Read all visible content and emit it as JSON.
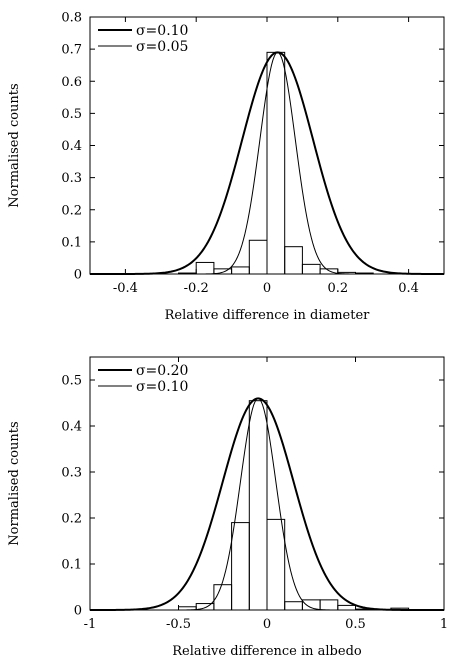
{
  "chart_data": [
    {
      "type": "histogram",
      "xlabel": "Relative difference in diameter",
      "ylabel": "Normalised counts",
      "xlim": [
        -0.5,
        0.5
      ],
      "ylim": [
        0,
        0.8
      ],
      "xticks": [
        "-0.4",
        "-0.2",
        "0",
        "0.2",
        "0.4"
      ],
      "xtick_values": [
        -0.4,
        -0.2,
        0,
        0.2,
        0.4
      ],
      "yticks": [
        "0",
        "0.1",
        "0.2",
        "0.3",
        "0.4",
        "0.5",
        "0.6",
        "0.7",
        "0.8"
      ],
      "ytick_values": [
        0,
        0.1,
        0.2,
        0.3,
        0.4,
        0.5,
        0.6,
        0.7,
        0.8
      ],
      "grid": false,
      "legend_position": "top-left",
      "histogram": {
        "bin_edges": [
          -0.5,
          -0.45,
          -0.4,
          -0.35,
          -0.3,
          -0.25,
          -0.2,
          -0.15,
          -0.1,
          -0.05,
          0,
          0.05,
          0.1,
          0.15,
          0.2,
          0.25,
          0.3,
          0.35,
          0.4,
          0.45,
          0.5
        ],
        "counts": [
          0,
          0,
          0,
          0,
          0,
          0.003,
          0.036,
          0.016,
          0.022,
          0.105,
          0.69,
          0.085,
          0.03,
          0.016,
          0.005,
          0.003,
          0,
          0,
          0,
          0
        ]
      },
      "series": [
        {
          "name": "σ=0.10",
          "type": "gaussian",
          "mu": 0.03,
          "sigma": 0.1,
          "peak": 0.69,
          "line_width": "thick"
        },
        {
          "name": "σ=0.05",
          "type": "gaussian",
          "mu": 0.03,
          "sigma": 0.05,
          "peak": 0.69,
          "line_width": "thin"
        }
      ]
    },
    {
      "type": "histogram",
      "xlabel": "Relative difference in albedo",
      "ylabel": "Normalised counts",
      "xlim": [
        -1,
        1
      ],
      "ylim": [
        0,
        0.55
      ],
      "xticks": [
        "-1",
        "-0.5",
        "0",
        "0.5",
        "1"
      ],
      "xtick_values": [
        -1,
        -0.5,
        0,
        0.5,
        1
      ],
      "yticks": [
        "0",
        "0.1",
        "0.2",
        "0.3",
        "0.4",
        "0.5"
      ],
      "ytick_values": [
        0,
        0.1,
        0.2,
        0.3,
        0.4,
        0.5
      ],
      "grid": false,
      "legend_position": "top-left",
      "histogram": {
        "bin_edges": [
          -0.5,
          -0.4,
          -0.3,
          -0.2,
          -0.1,
          0,
          0.1,
          0.2,
          0.3,
          0.4,
          0.5,
          0.6,
          0.7,
          0.8
        ],
        "counts": [
          0.007,
          0.014,
          0.055,
          0.19,
          0.455,
          0.197,
          0.018,
          0.022,
          0.022,
          0.01,
          0.002,
          0,
          0.004
        ]
      },
      "series": [
        {
          "name": "σ=0.20",
          "type": "gaussian",
          "mu": -0.05,
          "sigma": 0.2,
          "peak": 0.46,
          "line_width": "thick"
        },
        {
          "name": "σ=0.10",
          "type": "gaussian",
          "mu": -0.05,
          "sigma": 0.1,
          "peak": 0.46,
          "line_width": "thin"
        }
      ]
    }
  ]
}
